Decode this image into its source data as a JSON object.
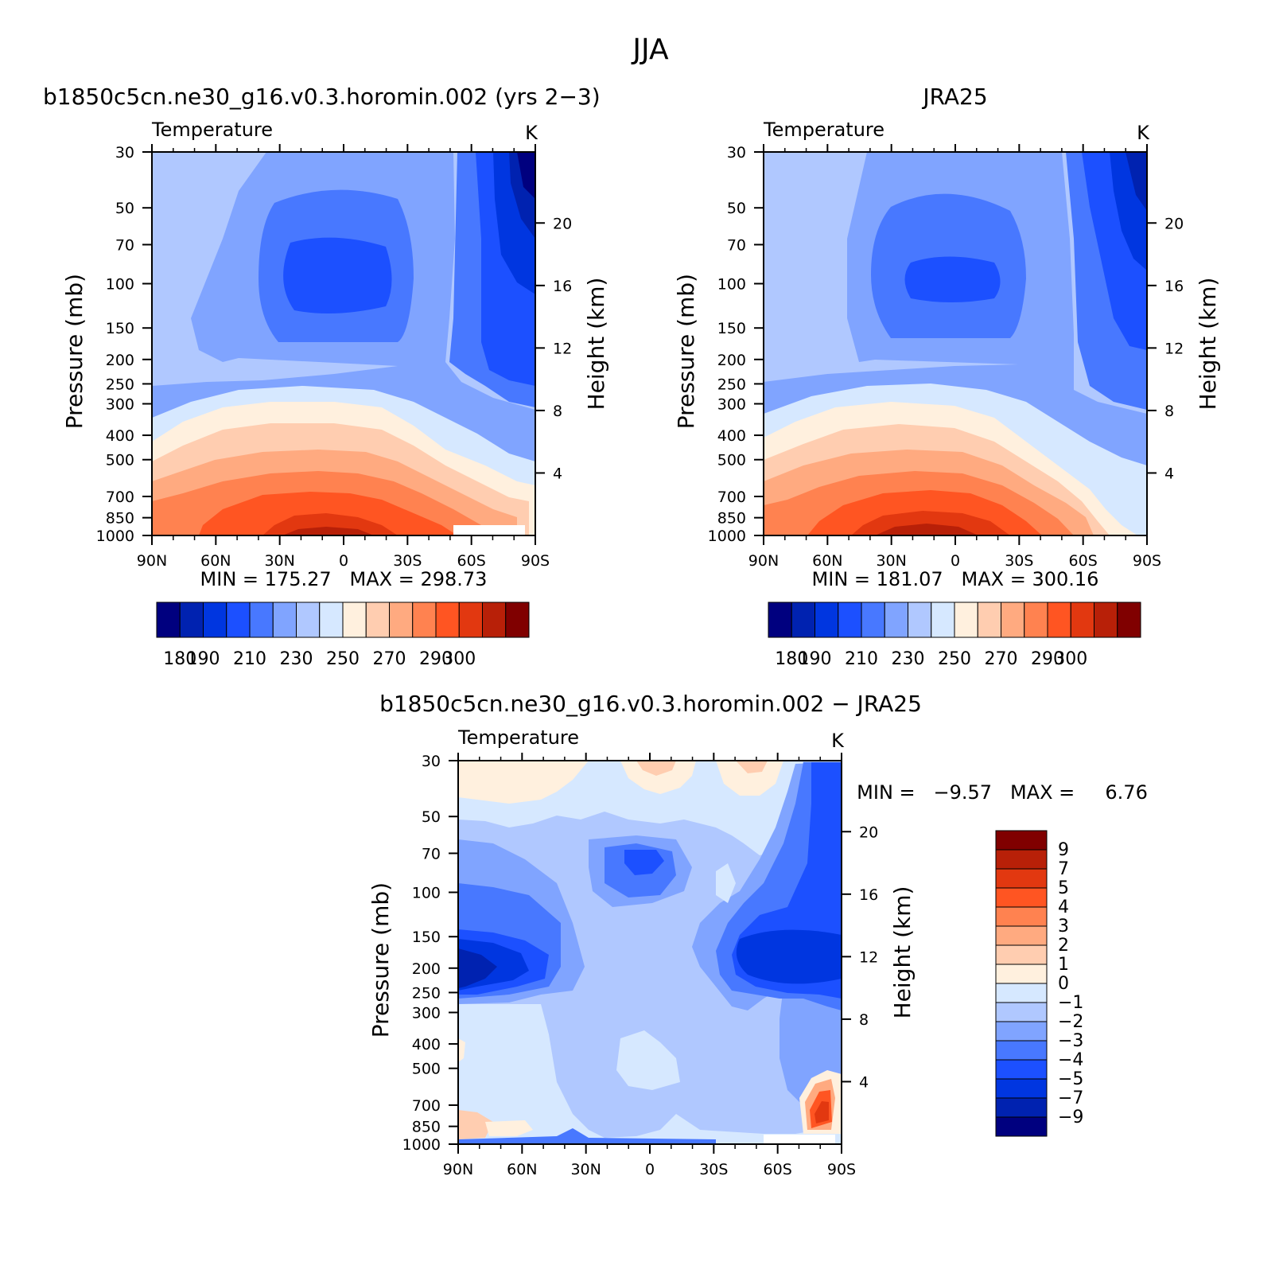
{
  "figure": {
    "title": "JJA"
  },
  "chart_data": [
    {
      "type": "heatmap",
      "panel_title": "b1850c5cn.ne30_g16.v0.3.horomin.002 (yrs 2-3)",
      "variable": "Temperature",
      "units": "K",
      "ylabel": "Pressure (mb)",
      "ylabel_right": "Height (km)",
      "xlabel": "",
      "x_ticks": [
        "90N",
        "60N",
        "30N",
        "0",
        "30S",
        "60S",
        "90S"
      ],
      "x_values": [
        90,
        60,
        30,
        0,
        -30,
        -60,
        -90
      ],
      "y_ticks": [
        30,
        50,
        70,
        100,
        150,
        200,
        250,
        300,
        400,
        500,
        700,
        850,
        1000
      ],
      "y_scale": "log",
      "ylim": [
        1000,
        30
      ],
      "height_ticks": [
        4,
        8,
        12,
        16,
        20
      ],
      "stats": "MIN = 175.27   MAX = 298.73",
      "min": 175.27,
      "max": 298.73,
      "colorbar": {
        "orientation": "horizontal",
        "levels": [
          180,
          190,
          200,
          210,
          220,
          230,
          240,
          250,
          260,
          270,
          280,
          290,
          300
        ],
        "tick_labels": [
          "180",
          "190",
          "210",
          "230",
          "250",
          "270",
          "290",
          "300"
        ],
        "colors": [
          "#00007f",
          "#0022b0",
          "#0036e0",
          "#1c50ff",
          "#4878ff",
          "#80a4ff",
          "#b0c8ff",
          "#d6e8ff",
          "#fff0de",
          "#ffcdb0",
          "#ffaa80",
          "#ff8250",
          "#ff5522",
          "#e23810",
          "#b82008",
          "#800000"
        ]
      }
    },
    {
      "type": "heatmap",
      "panel_title": "JRA25",
      "variable": "Temperature",
      "units": "K",
      "ylabel": "Pressure (mb)",
      "ylabel_right": "Height (km)",
      "xlabel": "",
      "x_ticks": [
        "90N",
        "60N",
        "30N",
        "0",
        "30S",
        "60S",
        "90S"
      ],
      "x_values": [
        90,
        60,
        30,
        0,
        -30,
        -60,
        -90
      ],
      "y_ticks": [
        30,
        50,
        70,
        100,
        150,
        200,
        250,
        300,
        400,
        500,
        700,
        850,
        1000
      ],
      "y_scale": "log",
      "ylim": [
        1000,
        30
      ],
      "height_ticks": [
        4,
        8,
        12,
        16,
        20
      ],
      "stats": "MIN = 181.07   MAX = 300.16",
      "min": 181.07,
      "max": 300.16,
      "colorbar": {
        "orientation": "horizontal",
        "levels": [
          180,
          190,
          200,
          210,
          220,
          230,
          240,
          250,
          260,
          270,
          280,
          290,
          300
        ],
        "tick_labels": [
          "180",
          "190",
          "210",
          "230",
          "250",
          "270",
          "290",
          "300"
        ],
        "colors": [
          "#00007f",
          "#0022b0",
          "#0036e0",
          "#1c50ff",
          "#4878ff",
          "#80a4ff",
          "#b0c8ff",
          "#d6e8ff",
          "#fff0de",
          "#ffcdb0",
          "#ffaa80",
          "#ff8250",
          "#ff5522",
          "#e23810",
          "#b82008",
          "#800000"
        ]
      }
    },
    {
      "type": "heatmap",
      "panel_title": "b1850c5cn.ne30_g16.v0.3.horomin.002 - JRA25",
      "variable": "Temperature",
      "units": "K",
      "ylabel": "Pressure (mb)",
      "ylabel_right": "Height (km)",
      "xlabel": "",
      "x_ticks": [
        "90N",
        "60N",
        "30N",
        "0",
        "30S",
        "60S",
        "90S"
      ],
      "x_values": [
        90,
        60,
        30,
        0,
        -30,
        -60,
        -90
      ],
      "y_ticks": [
        30,
        50,
        70,
        100,
        150,
        200,
        250,
        300,
        400,
        500,
        700,
        850,
        1000
      ],
      "y_scale": "log",
      "ylim": [
        1000,
        30
      ],
      "height_ticks": [
        4,
        8,
        12,
        16,
        20
      ],
      "stats": "MIN =   -9.57   MAX =     6.76",
      "min": -9.57,
      "max": 6.76,
      "colorbar": {
        "orientation": "vertical",
        "levels": [
          9,
          7,
          5,
          4,
          3,
          2,
          1,
          0,
          -1,
          -2,
          -3,
          -4,
          -5,
          -7,
          -9
        ],
        "tick_labels": [
          "9",
          "7",
          "5",
          "4",
          "3",
          "2",
          "1",
          "0",
          "-1",
          "-2",
          "-3",
          "-4",
          "-5",
          "-7",
          "-9"
        ],
        "colors": [
          "#800000",
          "#b82008",
          "#e23810",
          "#ff5522",
          "#ff8250",
          "#ffaa80",
          "#ffcdb0",
          "#fff0de",
          "#d6e8ff",
          "#b0c8ff",
          "#80a4ff",
          "#4878ff",
          "#1c50ff",
          "#0036e0",
          "#0022b0",
          "#00007f"
        ]
      }
    }
  ]
}
